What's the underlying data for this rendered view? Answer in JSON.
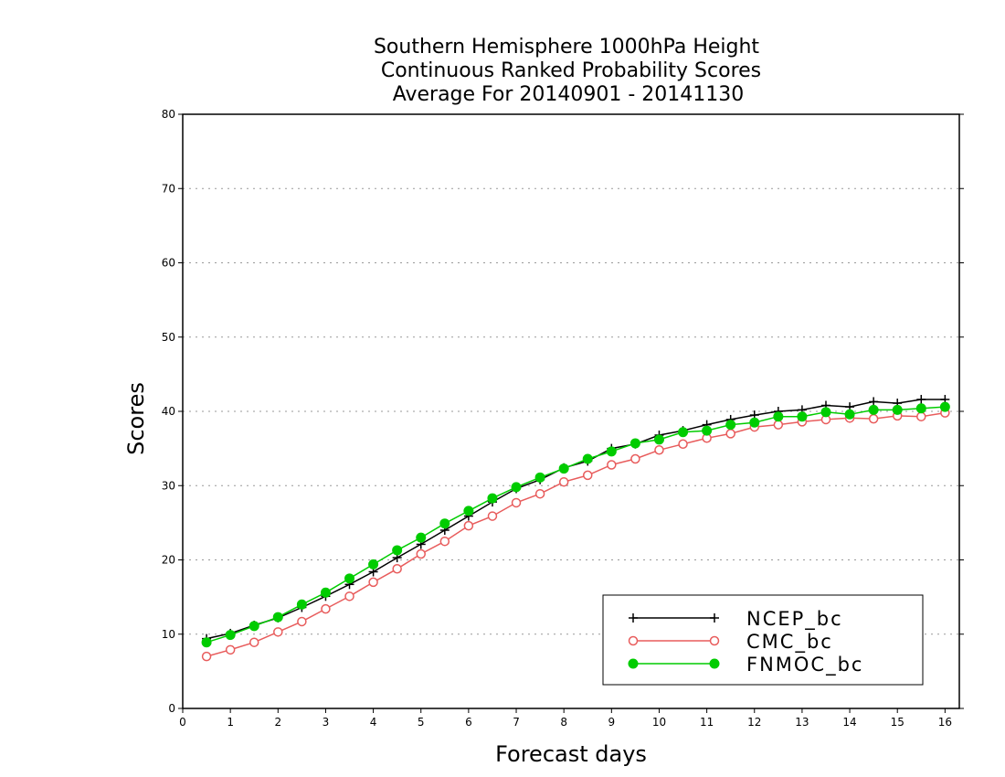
{
  "chart_data": {
    "type": "line",
    "title_lines": [
      "Southern Hemisphere 1000hPa Height",
      "Continuous Ranked Probability Scores",
      "Average For 20140901 - 20141130"
    ],
    "xlabel": "Forecast days",
    "ylabel": "Scores",
    "xlim": [
      0,
      16.3
    ],
    "ylim": [
      0,
      80
    ],
    "x_ticks": [
      "0",
      "1",
      "2",
      "3",
      "4",
      "5",
      "6",
      "7",
      "8",
      "9",
      "10",
      "11",
      "12",
      "13",
      "14",
      "15",
      "16"
    ],
    "y_ticks": [
      "0",
      "10",
      "20",
      "30",
      "40",
      "50",
      "60",
      "70",
      "80"
    ],
    "grid": "horizontal dotted",
    "legend_position": "bottom-right",
    "x": [
      0.5,
      1,
      1.5,
      2,
      2.5,
      3,
      3.5,
      4,
      4.5,
      5,
      5.5,
      6,
      6.5,
      7,
      7.5,
      8,
      8.5,
      9,
      9.5,
      10,
      10.5,
      11,
      11.5,
      12,
      12.5,
      13,
      13.5,
      14,
      14.5,
      15,
      15.5,
      16
    ],
    "series": [
      {
        "name": "NCEP_bc",
        "color": "#000000",
        "marker": "plus",
        "values": [
          9.4,
          10.1,
          11.2,
          12.2,
          13.6,
          15.1,
          16.7,
          18.4,
          20.3,
          22.1,
          24.0,
          25.9,
          27.8,
          29.6,
          30.8,
          32.4,
          33.3,
          35.0,
          35.6,
          36.8,
          37.4,
          38.2,
          38.9,
          39.5,
          40.0,
          40.2,
          40.8,
          40.6,
          41.3,
          41.1,
          41.6,
          41.6
        ]
      },
      {
        "name": "CMC_bc",
        "color": "#e85c5c",
        "marker": "open-circle",
        "values": [
          7.0,
          7.9,
          8.9,
          10.3,
          11.7,
          13.4,
          15.1,
          17.0,
          18.8,
          20.8,
          22.5,
          24.6,
          25.9,
          27.7,
          28.9,
          30.5,
          31.4,
          32.8,
          33.6,
          34.8,
          35.6,
          36.4,
          37.0,
          37.9,
          38.2,
          38.6,
          38.9,
          39.1,
          39.0,
          39.4,
          39.3,
          39.8
        ]
      },
      {
        "name": "FNMOC_bc",
        "color": "#00cc00",
        "marker": "filled-circle",
        "values": [
          8.9,
          9.9,
          11.1,
          12.3,
          14.0,
          15.6,
          17.5,
          19.4,
          21.3,
          23.0,
          24.9,
          26.6,
          28.3,
          29.8,
          31.1,
          32.3,
          33.6,
          34.6,
          35.7,
          36.2,
          37.2,
          37.4,
          38.2,
          38.5,
          39.3,
          39.3,
          39.9,
          39.6,
          40.2,
          40.2,
          40.4,
          40.6
        ]
      }
    ]
  }
}
